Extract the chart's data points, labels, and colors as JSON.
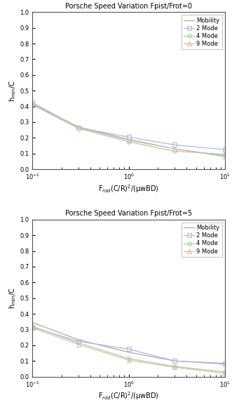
{
  "title1": "Porsche Speed Variation Fpist/Frot=0",
  "title2": "Porsche Speed Variation Fpist/Frot=5",
  "xlabel": "F$_{rod}$(C/R)$^2$/(\\muBD)",
  "ylabel": "h$_{min}$/C",
  "xlim": [
    0.1,
    10.0
  ],
  "ylim": [
    0,
    1
  ],
  "yticks": [
    0,
    0.1,
    0.2,
    0.3,
    0.4,
    0.5,
    0.6,
    0.7,
    0.8,
    0.9,
    1
  ],
  "legend_labels": [
    "Mobility",
    "2 Mode",
    "4 Mode",
    "9 Mode"
  ],
  "colors": {
    "mobility": "#aaaaaa",
    "mode2": "#aabbdd",
    "mode4": "#aaccaa",
    "mode9": "#ddbbaa"
  },
  "plot1": {
    "x_common": [
      0.1,
      0.3,
      1.0,
      3.0,
      10.0
    ],
    "mobility": [
      0.415,
      0.27,
      0.19,
      0.13,
      0.085
    ],
    "mode2": [
      0.425,
      0.265,
      0.205,
      0.155,
      0.125
    ],
    "mode4": [
      0.41,
      0.26,
      0.175,
      0.115,
      0.095
    ],
    "mode9": [
      0.415,
      0.265,
      0.185,
      0.13,
      0.08
    ]
  },
  "plot2": {
    "x_common": [
      0.1,
      0.3,
      1.0,
      3.0,
      10.0
    ],
    "mobility": [
      0.345,
      0.235,
      0.155,
      0.1,
      0.08
    ],
    "mode2": [
      0.315,
      0.225,
      0.175,
      0.1,
      0.085
    ],
    "mode4": [
      0.32,
      0.215,
      0.115,
      0.065,
      0.03
    ],
    "mode9": [
      0.31,
      0.205,
      0.105,
      0.06,
      0.02
    ]
  }
}
